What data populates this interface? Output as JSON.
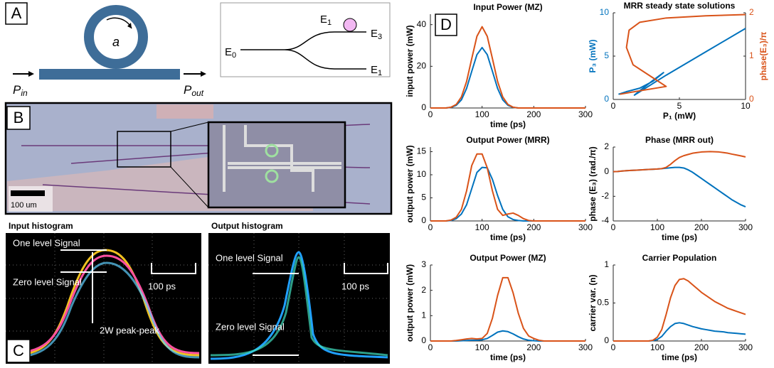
{
  "panel_labels": {
    "a": "A",
    "b": "B",
    "c": "C",
    "d": "D"
  },
  "ring_diagram": {
    "ring_label": "a",
    "input": {
      "base": "P",
      "sub": "in"
    },
    "output": {
      "base": "P",
      "sub": "out"
    }
  },
  "coupler_diagram": {
    "input": {
      "base": "E",
      "sub": "0"
    },
    "top_marker": {
      "base": "E",
      "sub": "1"
    },
    "upper_output": {
      "base": "E",
      "sub": "3"
    },
    "lower_output": {
      "base": "E",
      "sub": "1"
    }
  },
  "chip_image": {
    "scale_bar": "100 um"
  },
  "histograms": {
    "input": {
      "title": "Input histogram",
      "one_level": "One level Signal",
      "zero_level": "Zero level Signal",
      "time_scale": "100 ps",
      "amplitude": "2W peak-peak"
    },
    "output": {
      "title": "Output histogram",
      "one_level": "One level Signal",
      "zero_level": "Zero level Signal",
      "time_scale": "100 ps"
    }
  },
  "chart_data": [
    {
      "type": "line",
      "title": "Input Power (MZ)",
      "xlabel": "time (ps)",
      "ylabel": "input power (mW)",
      "xlim": [
        0,
        300
      ],
      "xticks": [
        0,
        100,
        200,
        300
      ],
      "ylim": [
        0,
        45
      ],
      "yticks": [
        0,
        20,
        40
      ],
      "x": [
        0,
        10,
        20,
        30,
        40,
        50,
        60,
        70,
        80,
        90,
        100,
        110,
        120,
        130,
        140,
        150,
        160,
        170,
        180,
        190,
        200,
        210,
        220,
        230,
        240,
        250,
        260,
        270,
        280,
        290,
        300
      ],
      "series": [
        {
          "color": "#0072bd",
          "values": [
            0,
            0,
            0,
            0,
            0.3,
            1.3,
            3.9,
            9.4,
            17.6,
            25.6,
            29,
            25.6,
            17.6,
            9.4,
            3.9,
            1.3,
            0.3,
            0,
            0,
            0,
            0,
            0,
            0,
            0,
            0,
            0,
            0,
            0,
            0,
            0,
            0
          ]
        },
        {
          "color": "#d95319",
          "values": [
            0,
            0,
            0,
            0,
            0.4,
            1.7,
            5.3,
            12.7,
            23.7,
            34.4,
            39,
            34.4,
            23.7,
            12.7,
            5.3,
            1.7,
            0.4,
            0,
            0,
            0,
            0,
            0,
            0,
            0,
            0,
            0,
            0,
            0,
            0,
            0,
            0
          ]
        }
      ]
    },
    {
      "type": "line",
      "title": "Output Power (MRR)",
      "xlabel": "time (ps)",
      "ylabel": "output power (mW)",
      "xlim": [
        0,
        300
      ],
      "xticks": [
        0,
        100,
        200,
        300
      ],
      "ylim": [
        0,
        16
      ],
      "yticks": [
        0,
        5,
        10,
        15
      ],
      "x": [
        0,
        10,
        20,
        30,
        40,
        50,
        60,
        70,
        80,
        90,
        100,
        110,
        120,
        130,
        140,
        150,
        160,
        170,
        180,
        190,
        200,
        210,
        220,
        230,
        240,
        250,
        260,
        270,
        280,
        290,
        300
      ],
      "series": [
        {
          "color": "#0072bd",
          "values": [
            0,
            0,
            0,
            0,
            0.1,
            0.5,
            1.5,
            3.5,
            7,
            10.5,
            11.6,
            11.5,
            9,
            5.5,
            2.5,
            0.9,
            0.3,
            0.1,
            0,
            0,
            0,
            0,
            0,
            0,
            0,
            0,
            0,
            0,
            0,
            0,
            0
          ]
        },
        {
          "color": "#d95319",
          "values": [
            0,
            0,
            0,
            0,
            0.2,
            0.8,
            2.5,
            6.5,
            12,
            14.5,
            14.5,
            11.5,
            6.5,
            2.5,
            1.2,
            1.5,
            1.7,
            1.2,
            0.5,
            0.1,
            0,
            0,
            0,
            0,
            0,
            0,
            0,
            0,
            0,
            0,
            0
          ]
        }
      ]
    },
    {
      "type": "line",
      "title": "Output Power (MZ)",
      "xlabel": "time (ps)",
      "ylabel": "output power (mW)",
      "xlim": [
        0,
        300
      ],
      "xticks": [
        0,
        100,
        200,
        300
      ],
      "ylim": [
        0,
        3
      ],
      "yticks": [
        0,
        1,
        2,
        3
      ],
      "x": [
        0,
        10,
        20,
        30,
        40,
        50,
        60,
        70,
        80,
        90,
        100,
        110,
        120,
        130,
        140,
        150,
        160,
        170,
        180,
        190,
        200,
        210,
        220,
        230,
        240,
        250,
        260,
        270,
        280,
        290,
        300
      ],
      "series": [
        {
          "color": "#0072bd",
          "values": [
            0,
            0,
            0,
            0,
            0,
            0,
            0.01,
            0.02,
            0.03,
            0.03,
            0.05,
            0.1,
            0.22,
            0.35,
            0.4,
            0.37,
            0.28,
            0.17,
            0.08,
            0.03,
            0.01,
            0,
            0,
            0,
            0,
            0,
            0,
            0,
            0,
            0,
            0
          ]
        },
        {
          "color": "#d95319",
          "values": [
            0,
            0,
            0,
            0,
            0,
            0.02,
            0.05,
            0.08,
            0.1,
            0.08,
            0.1,
            0.3,
            0.9,
            1.8,
            2.5,
            2.5,
            1.9,
            1.1,
            0.5,
            0.2,
            0.1,
            0.03,
            0,
            0,
            0,
            0,
            0,
            0,
            0,
            0,
            0
          ]
        }
      ]
    },
    {
      "type": "line",
      "title": "MRR steady state solutions",
      "xlabel": "P₁ (mW)",
      "ylabel": "P₃ (mW)",
      "y2label": "phase(E₃)/π",
      "ylabel_color": "#0072bd",
      "y2label_color": "#d95319",
      "xlim": [
        0,
        10
      ],
      "xticks": [
        0,
        5,
        10
      ],
      "ylim": [
        0,
        10
      ],
      "yticks": [
        0,
        5,
        10
      ],
      "y2lim": [
        0,
        2
      ],
      "y2ticks": [
        0,
        1,
        2
      ],
      "series": [
        {
          "color": "#0072bd",
          "x": [
            0.4,
            1,
            2,
            3,
            3.8,
            3,
            2,
            1.6,
            4,
            7,
            10
          ],
          "values": [
            0.6,
            0.9,
            1.3,
            2.1,
            3.1,
            2.2,
            1.0,
            0.5,
            2.8,
            5.5,
            8.2
          ]
        },
        {
          "color": "#d95319",
          "axis": "y2",
          "x": [
            0.5,
            2,
            4,
            3,
            1.5,
            1.0,
            1.2,
            2,
            4,
            7,
            10
          ],
          "values": [
            0.12,
            0.2,
            0.3,
            0.5,
            0.8,
            1.2,
            1.6,
            1.78,
            1.88,
            1.93,
            1.96
          ]
        }
      ]
    },
    {
      "type": "line",
      "title": "Phase (MRR out)",
      "xlabel": "time (ps)",
      "ylabel": "phase (E₃) (rad./π)",
      "xlim": [
        0,
        300
      ],
      "xticks": [
        0,
        100,
        200,
        300
      ],
      "ylim": [
        -4,
        2
      ],
      "yticks": [
        -4,
        -2,
        0,
        2
      ],
      "x": [
        0,
        10,
        20,
        30,
        40,
        50,
        60,
        70,
        80,
        90,
        100,
        110,
        120,
        130,
        140,
        150,
        160,
        170,
        180,
        190,
        200,
        210,
        220,
        230,
        240,
        250,
        260,
        270,
        280,
        290,
        300
      ],
      "series": [
        {
          "color": "#0072bd",
          "values": [
            0,
            0.02,
            0.05,
            0.08,
            0.1,
            0.12,
            0.14,
            0.16,
            0.18,
            0.2,
            0.22,
            0.25,
            0.28,
            0.32,
            0.35,
            0.35,
            0.3,
            0.15,
            -0.05,
            -0.3,
            -0.55,
            -0.8,
            -1.05,
            -1.3,
            -1.55,
            -1.8,
            -2.05,
            -2.3,
            -2.5,
            -2.7,
            -2.85
          ]
        },
        {
          "color": "#d95319",
          "values": [
            0,
            0.02,
            0.05,
            0.08,
            0.1,
            0.12,
            0.14,
            0.16,
            0.18,
            0.2,
            0.22,
            0.25,
            0.35,
            0.6,
            0.9,
            1.15,
            1.3,
            1.4,
            1.5,
            1.55,
            1.6,
            1.62,
            1.63,
            1.62,
            1.6,
            1.55,
            1.5,
            1.42,
            1.35,
            1.28,
            1.2
          ]
        }
      ]
    },
    {
      "type": "line",
      "title": "Carrier Population",
      "xlabel": "time (ps)",
      "ylabel": "carrier var. (n)",
      "xlim": [
        0,
        300
      ],
      "xticks": [
        0,
        100,
        200,
        300
      ],
      "ylim": [
        0,
        1
      ],
      "yticks": [
        0,
        0.5,
        1
      ],
      "x": [
        0,
        10,
        20,
        30,
        40,
        50,
        60,
        70,
        80,
        90,
        100,
        110,
        120,
        130,
        140,
        150,
        160,
        170,
        180,
        190,
        200,
        210,
        220,
        230,
        240,
        250,
        260,
        270,
        280,
        290,
        300
      ],
      "series": [
        {
          "color": "#0072bd",
          "values": [
            0,
            0,
            0,
            0,
            0,
            0,
            0,
            0,
            0,
            0.005,
            0.02,
            0.06,
            0.13,
            0.19,
            0.23,
            0.24,
            0.23,
            0.21,
            0.19,
            0.175,
            0.16,
            0.15,
            0.14,
            0.13,
            0.125,
            0.12,
            0.11,
            0.105,
            0.1,
            0.095,
            0.09
          ]
        },
        {
          "color": "#d95319",
          "values": [
            0,
            0,
            0,
            0,
            0,
            0,
            0,
            0,
            0,
            0.01,
            0.05,
            0.15,
            0.35,
            0.57,
            0.73,
            0.81,
            0.82,
            0.79,
            0.74,
            0.69,
            0.64,
            0.6,
            0.56,
            0.52,
            0.49,
            0.46,
            0.43,
            0.41,
            0.39,
            0.37,
            0.35
          ]
        }
      ]
    }
  ]
}
